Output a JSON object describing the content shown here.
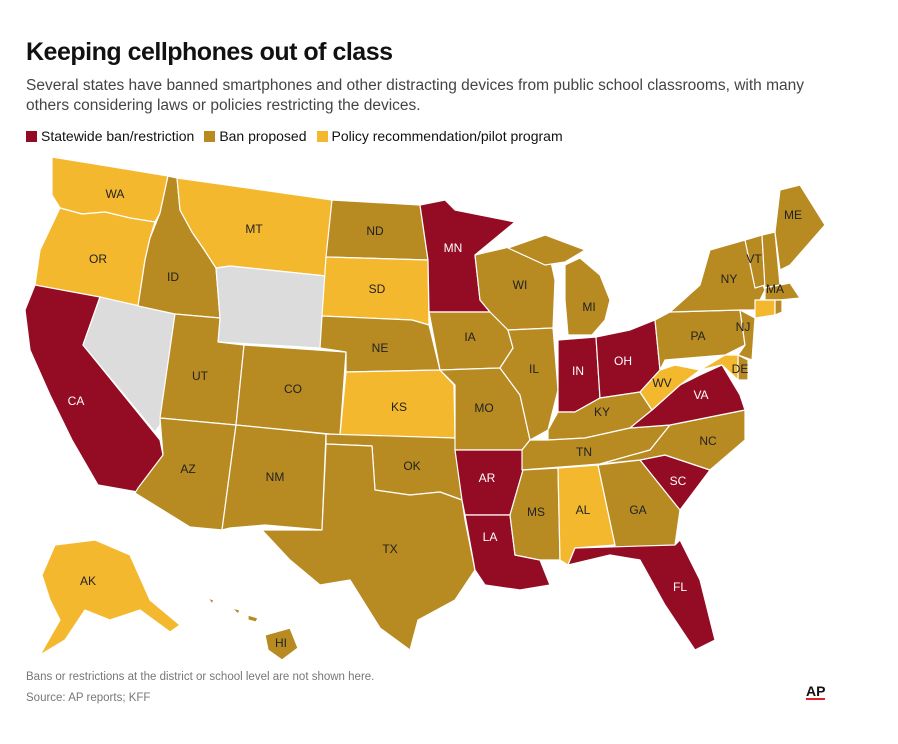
{
  "title": "Keeping cellphones out of class",
  "subtitle": "Several states have banned smartphones and other distracting devices from public school classrooms, with many others considering laws or policies restricting the devices.",
  "legend": [
    {
      "key": "ban",
      "label": "Statewide ban/restriction"
    },
    {
      "key": "proposed",
      "label": "Ban proposed"
    },
    {
      "key": "policy",
      "label": "Policy recommendation/pilot program"
    }
  ],
  "colors": {
    "ban": "#930c24",
    "proposed": "#b88a22",
    "policy": "#f4b82f",
    "none": "#dcdcdc",
    "label_dark": "#ffffff",
    "label_light": "#222222"
  },
  "states": {
    "WA": "policy",
    "OR": "policy",
    "CA": "ban",
    "NV": "none",
    "ID": "proposed",
    "MT": "policy",
    "WY": "none",
    "UT": "proposed",
    "AZ": "proposed",
    "CO": "proposed",
    "NM": "proposed",
    "ND": "proposed",
    "SD": "policy",
    "NE": "proposed",
    "KS": "policy",
    "OK": "proposed",
    "TX": "proposed",
    "MN": "ban",
    "IA": "proposed",
    "MO": "proposed",
    "AR": "ban",
    "LA": "ban",
    "WI": "proposed",
    "IL": "proposed",
    "MI": "proposed",
    "IN": "ban",
    "OH": "ban",
    "KY": "proposed",
    "TN": "proposed",
    "MS": "proposed",
    "AL": "policy",
    "GA": "proposed",
    "FL": "ban",
    "SC": "ban",
    "NC": "proposed",
    "VA": "ban",
    "WV": "policy",
    "PA": "proposed",
    "NY": "proposed",
    "VT": "proposed",
    "NH": "proposed",
    "ME": "proposed",
    "MA": "proposed",
    "CT": "policy",
    "RI": "proposed",
    "NJ": "proposed",
    "DE": "proposed",
    "MD": "policy",
    "AK": "policy",
    "HI": "proposed"
  },
  "labels": [
    "WA",
    "OR",
    "CA",
    "ID",
    "MT",
    "UT",
    "AZ",
    "CO",
    "NM",
    "ND",
    "SD",
    "NE",
    "KS",
    "OK",
    "TX",
    "MN",
    "IA",
    "MO",
    "AR",
    "LA",
    "WI",
    "IL",
    "MI",
    "IN",
    "OH",
    "KY",
    "TN",
    "MS",
    "AL",
    "GA",
    "FL",
    "SC",
    "NC",
    "VA",
    "WV",
    "PA",
    "NY",
    "VT",
    "ME",
    "MA",
    "NJ",
    "DE",
    "AK",
    "HI"
  ],
  "note": "Bans or restrictions at the district or school level are not shown here.",
  "source": "Source: AP reports; KFF",
  "logo": "AP"
}
